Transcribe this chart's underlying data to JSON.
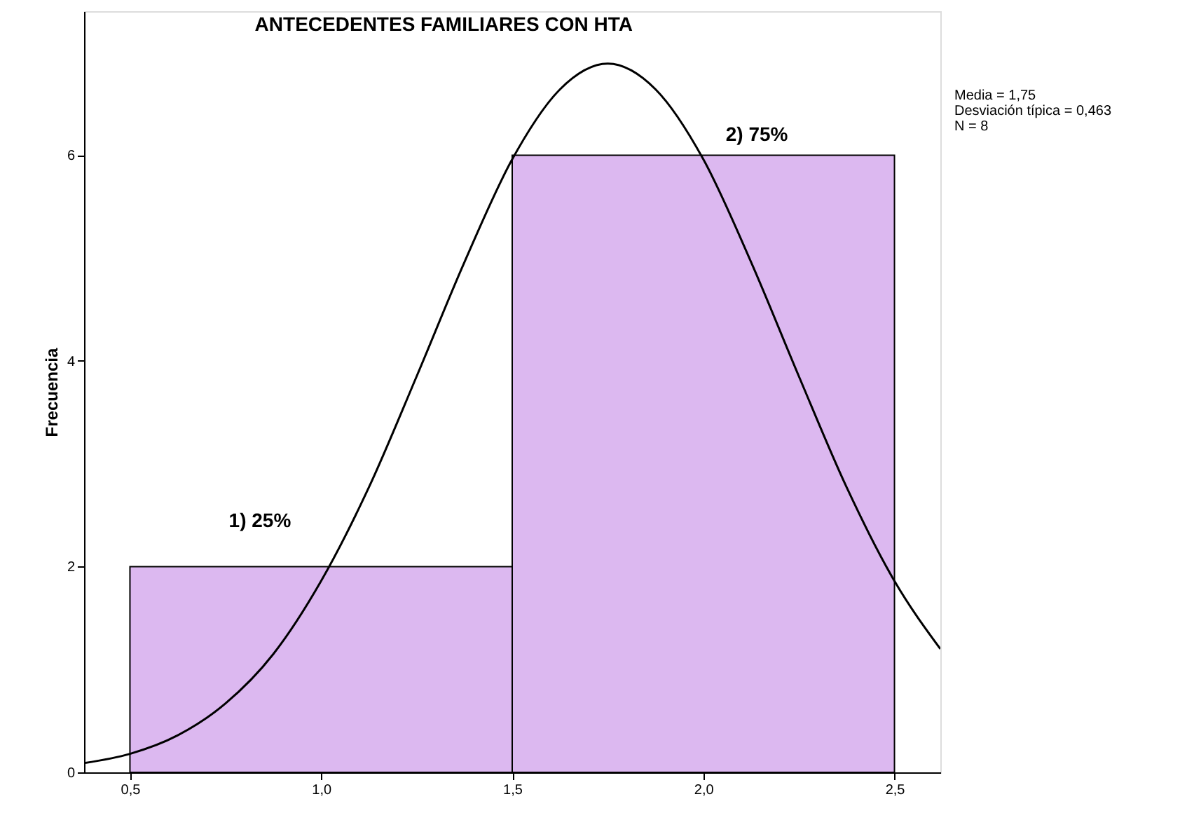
{
  "chart_data": {
    "type": "histogram",
    "title": "ANTECEDENTES FAMILIARES CON HTA",
    "ylabel": "Frecuencia",
    "bins": [
      0.5,
      1.5,
      2.5
    ],
    "values": [
      2,
      6
    ],
    "color": "#dcb8f0",
    "series": [
      {
        "type": "line",
        "color": "#000000",
        "x": [
          0.38,
          0.5,
          0.625,
          0.75,
          0.875,
          1.0,
          1.125,
          1.25,
          1.375,
          1.5,
          1.625,
          1.75,
          1.875,
          2.0,
          2.125,
          2.25,
          2.375,
          2.5,
          2.62
        ],
        "values": [
          0.09,
          0.18,
          0.36,
          0.67,
          1.15,
          1.86,
          2.77,
          3.85,
          4.96,
          5.96,
          6.64,
          6.89,
          6.64,
          5.96,
          4.96,
          3.85,
          2.77,
          1.86,
          1.2
        ]
      }
    ],
    "xlim": [
      0.38,
      2.62
    ],
    "ylim": [
      0,
      7.4
    ],
    "xticks": [
      {
        "value": 0.5,
        "label": "0,5"
      },
      {
        "value": 1.0,
        "label": "1,0"
      },
      {
        "value": 1.5,
        "label": "1,5"
      },
      {
        "value": 2.0,
        "label": "2,0"
      },
      {
        "value": 2.5,
        "label": "2,5"
      }
    ],
    "yticks": [
      0,
      2,
      4,
      6
    ],
    "annotations": [
      "1) 25%",
      "2) 75%",
      "Media = 1,75",
      "Desviación típica = 0,463",
      "N = 8"
    ],
    "grid": false
  }
}
